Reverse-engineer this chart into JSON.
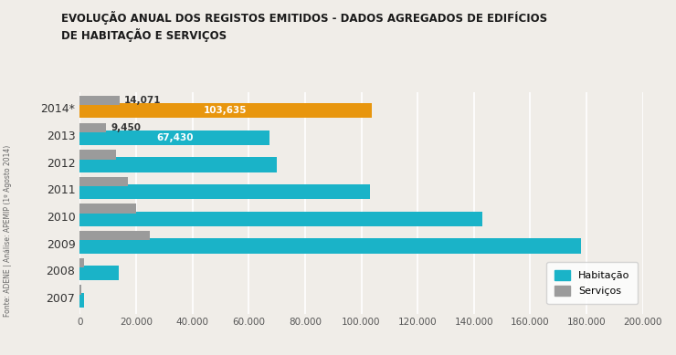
{
  "title": "EVOLUÇÃO ANUAL DOS REGISTOS EMITIDOS - DADOS AGREGADOS DE EDIFÍCIOS\nDE HABITAÇÃO E SERVIÇOS",
  "years": [
    "2014*",
    "2013",
    "2012",
    "2011",
    "2010",
    "2009",
    "2008",
    "2007"
  ],
  "habitacao": [
    103635,
    67430,
    70000,
    103000,
    143000,
    178000,
    14000,
    1500
  ],
  "servicos": [
    14071,
    9450,
    13000,
    17000,
    20000,
    25000,
    1500,
    500
  ],
  "habitacao_labels": [
    "103,635",
    "67,430",
    "",
    "",
    "",
    "",
    "",
    ""
  ],
  "servicos_labels": [
    "14,071",
    "9,450",
    "",
    "",
    "",
    "",
    "",
    ""
  ],
  "color_habitacao_default": "#1ab3c8",
  "color_habitacao_2014": "#e8960e",
  "color_servicos": "#9b9b9b",
  "background_color": "#f0ede8",
  "xlim": [
    0,
    200000
  ],
  "xticks": [
    0,
    20000,
    40000,
    60000,
    80000,
    100000,
    120000,
    140000,
    160000,
    180000,
    200000
  ],
  "xtick_labels": [
    "0",
    "20.000",
    "40.000",
    "60.000",
    "80.000",
    "100.000",
    "120.000",
    "140.000",
    "160.000",
    "180.000",
    "200.000"
  ],
  "legend_habitacao": "Habitação",
  "legend_servicos": "Serviços",
  "source_text": "Fonte: ADENE | Análise: APEMIP (1º Agosto 2014)"
}
